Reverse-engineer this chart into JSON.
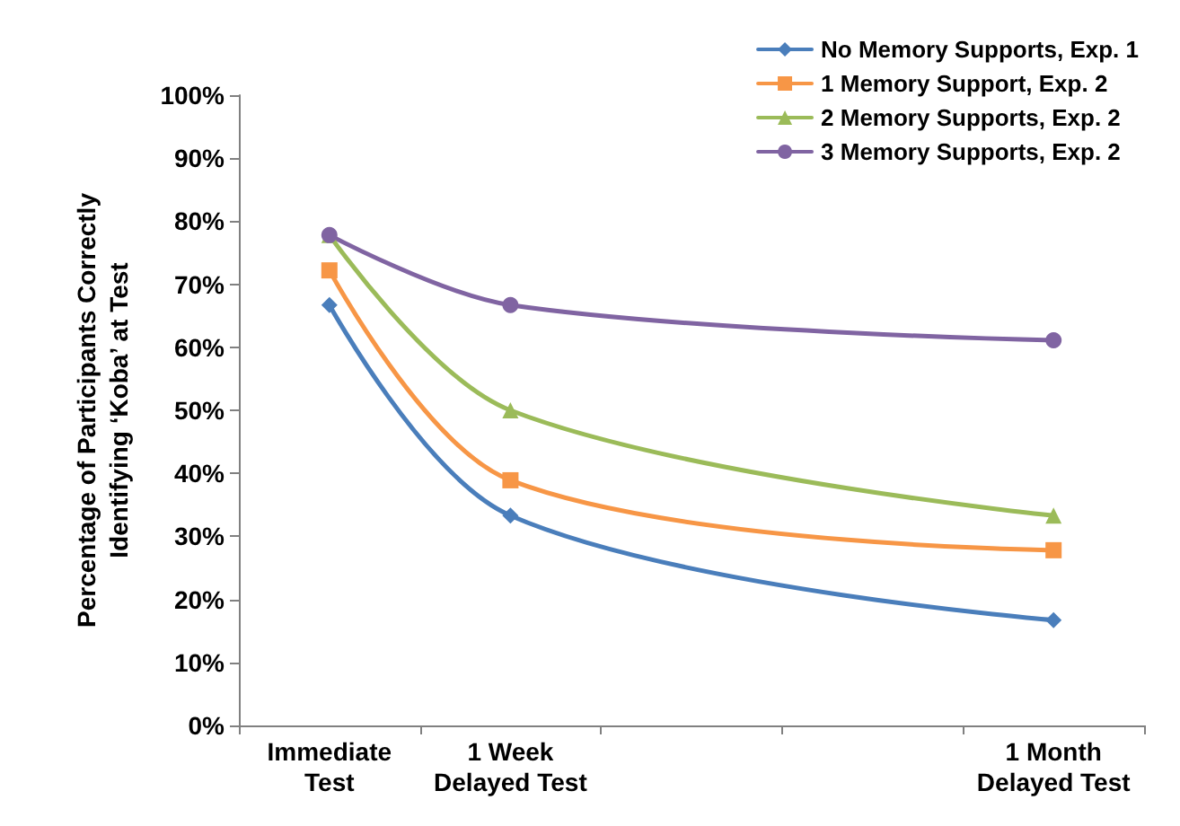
{
  "chart_data": {
    "type": "line",
    "ylabel": "Percentage of Participants Correctly\nIdentifying ‘Koba’ at Test",
    "categories": [
      "Immediate\nTest",
      "1 Week\nDelayed Test",
      null,
      null,
      "1 Month\nDelayed Test"
    ],
    "series": [
      {
        "name": "No Memory Supports, Exp. 1",
        "color": "#4a7ebb",
        "marker": "diamond",
        "values": [
          66.7,
          33.3,
          null,
          null,
          16.7
        ]
      },
      {
        "name": "1 Memory Support, Exp. 2",
        "color": "#f79646",
        "marker": "square",
        "values": [
          72.2,
          38.9,
          null,
          null,
          27.8
        ]
      },
      {
        "name": "2 Memory Supports, Exp. 2",
        "color": "#9bbb59",
        "marker": "triangle",
        "values": [
          77.8,
          50,
          null,
          null,
          33.3
        ]
      },
      {
        "name": "3 Memory Supports, Exp. 2",
        "color": "#8064a2",
        "marker": "circle",
        "values": [
          77.8,
          66.7,
          null,
          null,
          61.1
        ]
      }
    ],
    "ylim": [
      0,
      100
    ],
    "yticks": [
      {
        "value": 0,
        "label": "0%"
      },
      {
        "value": 10,
        "label": "10%"
      },
      {
        "value": 20,
        "label": "20%"
      },
      {
        "value": 30,
        "label": "30%"
      },
      {
        "value": 40,
        "label": "40%"
      },
      {
        "value": 50,
        "label": "50%"
      },
      {
        "value": 60,
        "label": "60%"
      },
      {
        "value": 70,
        "label": "70%"
      },
      {
        "value": 80,
        "label": "80%"
      },
      {
        "value": 90,
        "label": "90%"
      },
      {
        "value": 100,
        "label": "100%"
      }
    ],
    "grid": false,
    "legend": "top right",
    "line_style": "solid"
  }
}
